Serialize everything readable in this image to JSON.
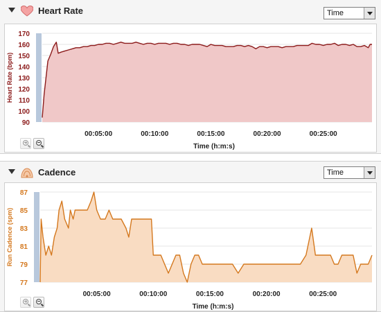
{
  "heart_rate_panel": {
    "title": "Heart Rate",
    "icon": "heart-icon",
    "axis_selector": {
      "selected": "Time"
    },
    "chart_data": {
      "type": "area",
      "ylabel": "Heart Rate (bpm)",
      "xlabel": "Time (h:m:s)",
      "ylim": [
        90,
        170
      ],
      "xlim_seconds": [
        0,
        1760
      ],
      "y_ticks": [
        "90",
        "100",
        "110",
        "120",
        "130",
        "140",
        "150",
        "160",
        "170"
      ],
      "x_ticks": [
        "00:05:00",
        "00:10:00",
        "00:15:00",
        "00:20:00",
        "00:25:00"
      ],
      "x_tick_values": [
        300,
        600,
        900,
        1200,
        1500
      ],
      "line_color": "#8b1a1a",
      "fill_color": "#f0c8c8",
      "grid": true,
      "series": [
        {
          "x": [
            0,
            10,
            20,
            30,
            45,
            60,
            75,
            85,
            100,
            120,
            140,
            160,
            180,
            200,
            220,
            240,
            260,
            280,
            300,
            320,
            340,
            360,
            380,
            400,
            420,
            440,
            460,
            480,
            500,
            520,
            540,
            560,
            580,
            600,
            620,
            640,
            660,
            680,
            700,
            720,
            740,
            760,
            780,
            800,
            820,
            840,
            860,
            880,
            900,
            920,
            940,
            960,
            980,
            1000,
            1020,
            1040,
            1060,
            1080,
            1100,
            1120,
            1140,
            1160,
            1180,
            1200,
            1220,
            1240,
            1260,
            1280,
            1300,
            1320,
            1340,
            1360,
            1380,
            1400,
            1420,
            1440,
            1460,
            1480,
            1500,
            1520,
            1540,
            1560,
            1580,
            1600,
            1620,
            1640,
            1660,
            1680,
            1700,
            1720,
            1740,
            1750,
            1760
          ],
          "y": [
            94,
            115,
            130,
            145,
            151,
            158,
            162,
            152,
            153,
            154,
            155,
            156,
            157,
            157,
            158,
            158,
            159,
            159,
            160,
            160,
            161,
            161,
            160,
            161,
            162,
            161,
            161,
            161,
            162,
            161,
            160,
            161,
            161,
            160,
            161,
            161,
            161,
            160,
            161,
            161,
            160,
            160,
            159,
            160,
            160,
            160,
            159,
            158,
            160,
            159,
            159,
            159,
            158,
            158,
            158,
            159,
            159,
            158,
            159,
            158,
            156,
            158,
            158,
            157,
            158,
            158,
            158,
            157,
            158,
            158,
            158,
            159,
            159,
            159,
            159,
            161,
            160,
            160,
            159,
            160,
            160,
            161,
            159,
            160,
            160,
            159,
            160,
            158,
            158,
            159,
            157,
            160,
            160
          ]
        }
      ]
    },
    "zoom_in_label": "",
    "zoom_out_label": ""
  },
  "cadence_panel": {
    "title": "Cadence",
    "icon": "runner-icon",
    "axis_selector": {
      "selected": "Time"
    },
    "chart_data": {
      "type": "area",
      "ylabel": "Run Cadence (spm)",
      "xlabel": "Time (h:m:s)",
      "ylim": [
        77,
        87
      ],
      "xlim_seconds": [
        0,
        1760
      ],
      "y_ticks": [
        "77",
        "79",
        "81",
        "83",
        "85",
        "87"
      ],
      "x_ticks": [
        "00:05:00",
        "00:10:00",
        "00:15:00",
        "00:20:00",
        "00:25:00"
      ],
      "x_tick_values": [
        300,
        600,
        900,
        1200,
        1500
      ],
      "line_color": "#d4781e",
      "fill_color": "#f9dcc2",
      "grid": true,
      "series": [
        {
          "x": [
            0,
            5,
            15,
            30,
            45,
            60,
            75,
            90,
            100,
            115,
            130,
            150,
            160,
            175,
            185,
            200,
            215,
            230,
            250,
            270,
            285,
            300,
            320,
            345,
            365,
            385,
            400,
            430,
            455,
            470,
            485,
            500,
            520,
            540,
            560,
            575,
            590,
            600,
            620,
            640,
            660,
            680,
            700,
            720,
            740,
            760,
            780,
            800,
            820,
            840,
            860,
            880,
            900,
            920,
            940,
            960,
            980,
            1000,
            1020,
            1050,
            1080,
            1110,
            1140,
            1170,
            1200,
            1230,
            1260,
            1290,
            1320,
            1350,
            1380,
            1410,
            1440,
            1460,
            1480,
            1500,
            1520,
            1540,
            1560,
            1580,
            1600,
            1620,
            1640,
            1660,
            1680,
            1700,
            1720,
            1740,
            1760
          ],
          "y": [
            77,
            84,
            82,
            80,
            81,
            80,
            82,
            83,
            85,
            86,
            84,
            83,
            85,
            84,
            85,
            85,
            85,
            85,
            85,
            86,
            87,
            85,
            84,
            84,
            85,
            84,
            84,
            84,
            83,
            82,
            84,
            84,
            84,
            84,
            84,
            84,
            84,
            80,
            80,
            80,
            79,
            78,
            79,
            80,
            80,
            78,
            77,
            79,
            80,
            80,
            79,
            79,
            79,
            79,
            79,
            79,
            79,
            79,
            79,
            78,
            79,
            79,
            79,
            79,
            79,
            79,
            79,
            79,
            79,
            79,
            79,
            80,
            83,
            80,
            80,
            80,
            80,
            80,
            79,
            79,
            80,
            80,
            80,
            80,
            78,
            79,
            79,
            79,
            80
          ]
        }
      ]
    },
    "zoom_in_label": "",
    "zoom_out_label": ""
  }
}
